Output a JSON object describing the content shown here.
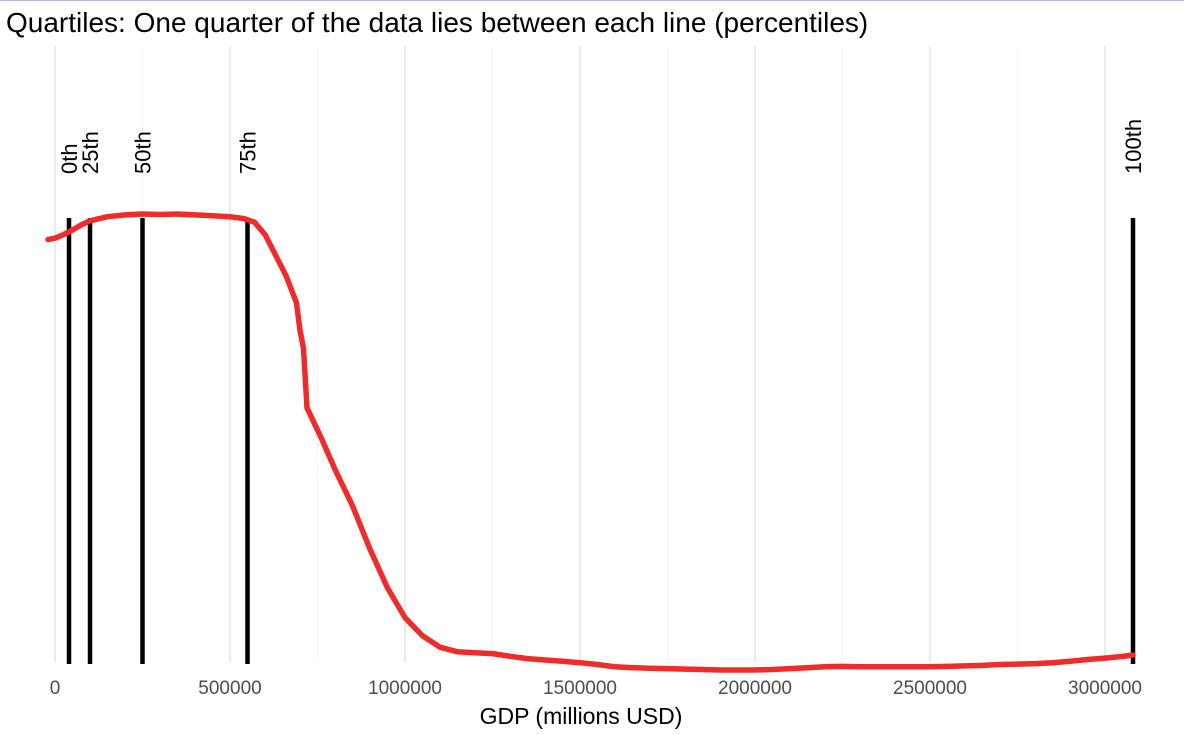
{
  "chart_data": {
    "type": "line",
    "title": "Quartiles: One quarter of the data lies between each line (percentiles)",
    "xlabel": "GDP (millions USD)",
    "ylabel": "",
    "xlim": [
      -20000,
      3080000
    ],
    "ylim": [
      0,
      1
    ],
    "x_ticks": [
      0,
      500000,
      1000000,
      1500000,
      2000000,
      2500000,
      3000000
    ],
    "x_tick_labels": [
      "0",
      "500000",
      "1000000",
      "1500000",
      "2000000",
      "2500000",
      "3000000"
    ],
    "y_axis_labels_shown": false,
    "grid": true,
    "line_color": "#ee2c2c",
    "percentile_color": "#000000",
    "percentiles": [
      {
        "label": "0th",
        "x": 40000
      },
      {
        "label": "25th",
        "x": 100000
      },
      {
        "label": "50th",
        "x": 250000
      },
      {
        "label": "75th",
        "x": 550000
      },
      {
        "label": "100th",
        "x": 3080000
      }
    ],
    "series": [
      {
        "x": [
          -20000,
          0,
          25000,
          50000,
          75000,
          100000,
          150000,
          200000,
          250000,
          300000,
          350000,
          400000,
          450000,
          500000,
          540000,
          570000,
          600000,
          630000,
          660000,
          690000,
          700000,
          710000,
          720000,
          760000,
          800000,
          850000,
          900000,
          950000,
          1000000,
          1050000,
          1100000,
          1150000,
          1200000,
          1250000,
          1300000,
          1350000,
          1400000,
          1450000,
          1500000,
          1550000,
          1600000,
          1650000,
          1700000,
          1750000,
          1800000,
          1850000,
          1900000,
          1950000,
          2000000,
          2050000,
          2100000,
          2150000,
          2200000,
          2250000,
          2300000,
          2350000,
          2400000,
          2450000,
          2500000,
          2550000,
          2600000,
          2650000,
          2700000,
          2750000,
          2800000,
          2850000,
          2900000,
          2950000,
          3000000,
          3040000,
          3080000
        ],
        "y": [
          0.944,
          0.947,
          0.955,
          0.965,
          0.976,
          0.985,
          0.994,
          0.998,
          1.0,
          0.999,
          1.0,
          0.998,
          0.996,
          0.994,
          0.99,
          0.982,
          0.955,
          0.91,
          0.865,
          0.805,
          0.745,
          0.705,
          0.575,
          0.51,
          0.44,
          0.36,
          0.265,
          0.18,
          0.115,
          0.075,
          0.05,
          0.04,
          0.038,
          0.036,
          0.03,
          0.025,
          0.022,
          0.019,
          0.016,
          0.012,
          0.007,
          0.005,
          0.004,
          0.003,
          0.002,
          0.001,
          0.0,
          0.0,
          0.0,
          0.001,
          0.003,
          0.005,
          0.007,
          0.008,
          0.007,
          0.007,
          0.007,
          0.007,
          0.007,
          0.008,
          0.009,
          0.01,
          0.012,
          0.013,
          0.014,
          0.016,
          0.019,
          0.023,
          0.026,
          0.029,
          0.033
        ]
      }
    ]
  }
}
